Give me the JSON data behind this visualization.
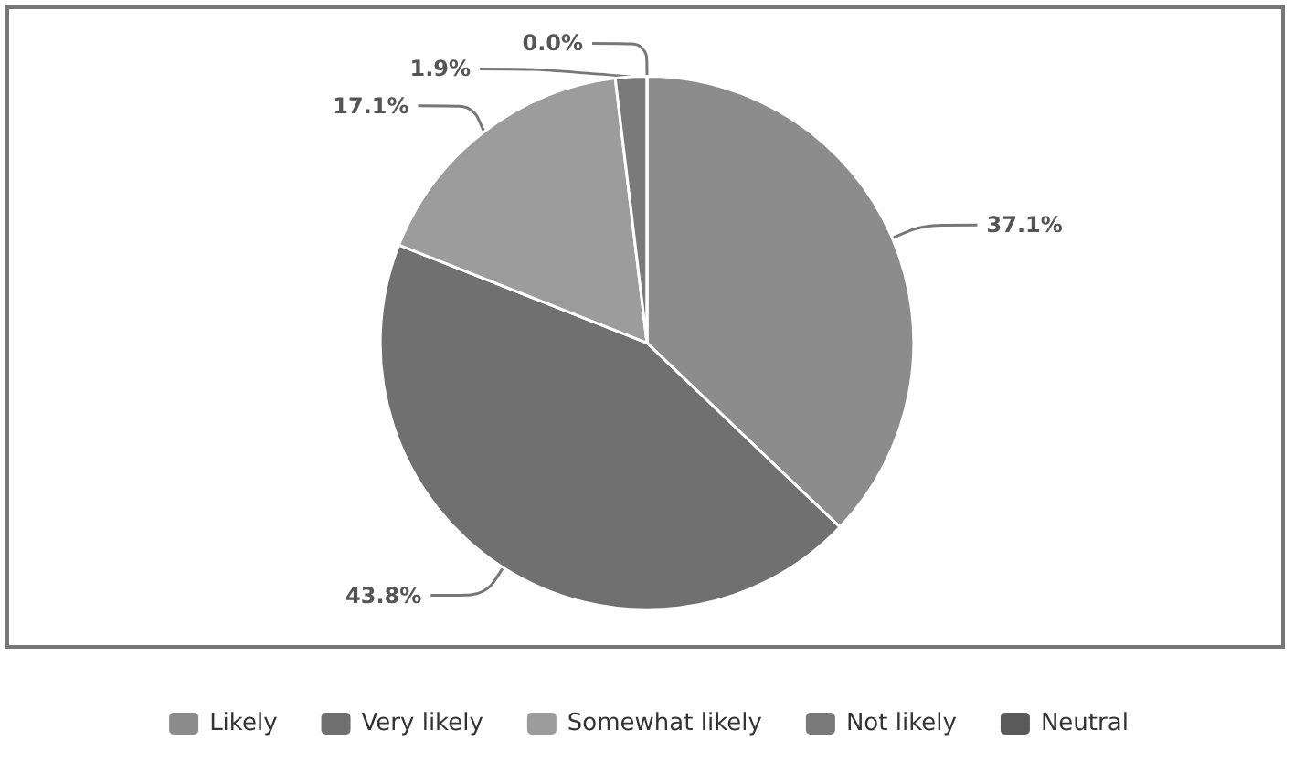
{
  "chart_data": {
    "type": "pie",
    "categories": [
      "Likely",
      "Very likely",
      "Somewhat likely",
      "Not likely",
      "Neutral"
    ],
    "values": [
      37.1,
      43.8,
      17.1,
      1.9,
      0.0
    ],
    "value_labels": [
      "37.1%",
      "43.8%",
      "17.1%",
      "1.9%",
      "0.0%"
    ],
    "colors": [
      "#8c8c8c",
      "#707070",
      "#9c9c9c",
      "#7a7a7a",
      "#5a5a5a"
    ],
    "legend": "bottom"
  }
}
